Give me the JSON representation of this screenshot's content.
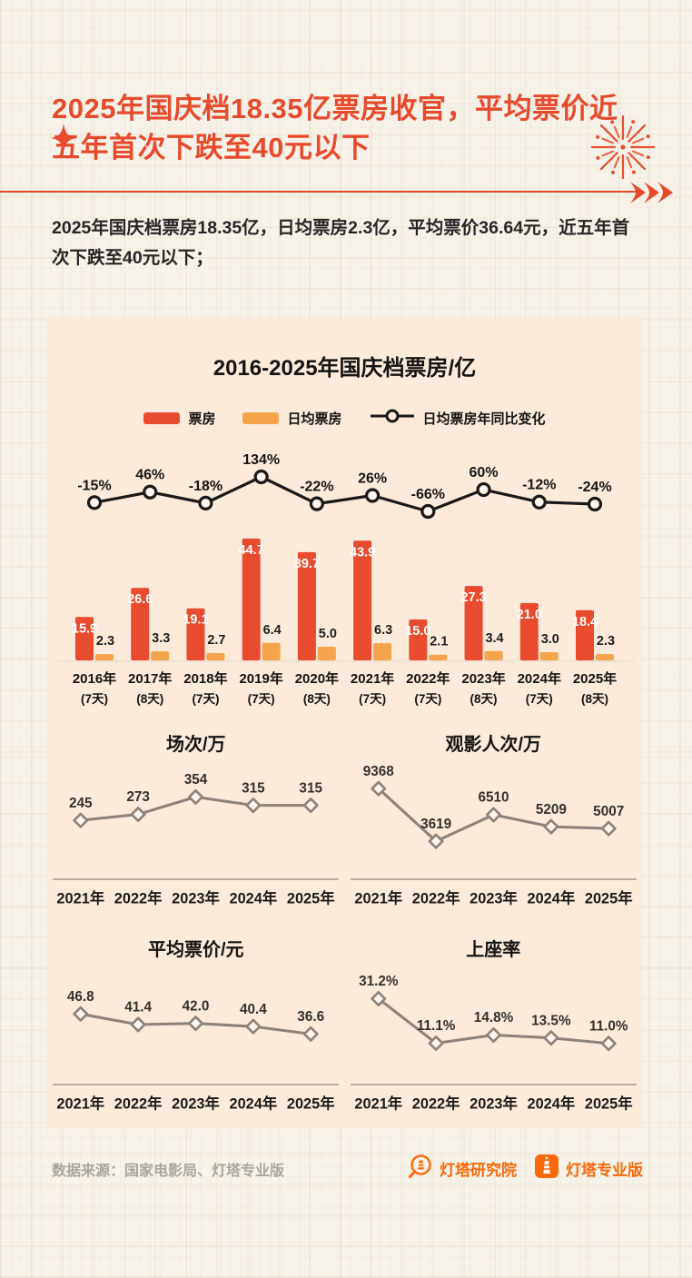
{
  "header": {
    "title": "2025年国庆档18.35亿票房收官，平均票价近五年首次下跌至40元以下",
    "intro": "2025年国庆档票房18.35亿，日均票房2.3亿，平均票价36.64元，近五年首次下跌至40元以下；"
  },
  "colors": {
    "accent": "#e84a2c",
    "bar_red": "#e94b2e",
    "bar_orange": "#f5a44c",
    "line_black": "#1a1a1a",
    "small_line": "#8d837b",
    "panel_bg": "#fcebdb",
    "page_bg": "#f8f3ea",
    "axis_gray": "#a79e92",
    "value_gray": "#33302c",
    "logo_orange": "#f9690a"
  },
  "chart_data": [
    {
      "type": "bar+line",
      "title": "2016-2025年国庆档票房/亿",
      "legend_position": "top",
      "categories": [
        "2016年",
        "2017年",
        "2018年",
        "2019年",
        "2020年",
        "2021年",
        "2022年",
        "2023年",
        "2024年",
        "2025年"
      ],
      "category_sub": [
        "(7天)",
        "(8天)",
        "(7天)",
        "(7天)",
        "(8天)",
        "(7天)",
        "(7天)",
        "(8天)",
        "(7天)",
        "(8天)"
      ],
      "ylim": [
        0,
        48
      ],
      "series": [
        {
          "name": "票房",
          "type": "bar",
          "values": [
            15.9,
            26.6,
            19.1,
            44.7,
            39.7,
            43.9,
            15.0,
            27.3,
            21.0,
            18.4
          ],
          "labels": [
            "15.9",
            "26.6",
            "19.1",
            "44.7",
            "39.7",
            "43.9",
            "15.0",
            "27.3",
            "21.0",
            "18.4"
          ]
        },
        {
          "name": "日均票房",
          "type": "bar",
          "values": [
            2.3,
            3.3,
            2.7,
            6.4,
            5.0,
            6.3,
            2.1,
            3.4,
            3.0,
            2.3
          ],
          "labels": [
            "2.3",
            "3.3",
            "2.7",
            "6.4",
            "5.0",
            "6.3",
            "2.1",
            "3.4",
            "3.0",
            "2.3"
          ]
        },
        {
          "name": "日均票房年同比变化",
          "type": "line",
          "values": [
            -15,
            46,
            -18,
            134,
            -22,
            26,
            -66,
            60,
            -12,
            -24
          ],
          "labels": [
            "-15%",
            "46%",
            "-18%",
            "134%",
            "-22%",
            "26%",
            "-66%",
            "60%",
            "-12%",
            "-24%"
          ]
        }
      ]
    },
    {
      "type": "line",
      "title": "场次/万",
      "categories": [
        "2021年",
        "2022年",
        "2023年",
        "2024年",
        "2025年"
      ],
      "values": [
        245,
        273,
        354,
        315,
        315
      ],
      "labels": [
        "245",
        "273",
        "354",
        "315",
        "315"
      ],
      "ylim": [
        100,
        420
      ]
    },
    {
      "type": "line",
      "title": "观影人次/万",
      "categories": [
        "2021年",
        "2022年",
        "2023年",
        "2024年",
        "2025年"
      ],
      "values": [
        9368,
        3619,
        6510,
        5209,
        5007
      ],
      "labels": [
        "9368",
        "3619",
        "6510",
        "5209",
        "5007"
      ],
      "ylim": [
        2500,
        10000
      ]
    },
    {
      "type": "line",
      "title": "平均票价/元",
      "categories": [
        "2021年",
        "2022年",
        "2023年",
        "2024年",
        "2025年"
      ],
      "values": [
        46.8,
        41.4,
        42.0,
        40.4,
        36.6
      ],
      "labels": [
        "46.8",
        "41.4",
        "42.0",
        "40.4",
        "36.6"
      ],
      "ylim": [
        25,
        60
      ]
    },
    {
      "type": "line",
      "title": "上座率",
      "categories": [
        "2021年",
        "2022年",
        "2023年",
        "2024年",
        "2025年"
      ],
      "values": [
        31.2,
        11.1,
        14.8,
        13.5,
        11.0
      ],
      "labels": [
        "31.2%",
        "11.1%",
        "14.8%",
        "13.5%",
        "11.0%"
      ],
      "ylim": [
        5,
        36
      ]
    }
  ],
  "footer": {
    "source": "数据来源：国家电影局、灯塔专业版",
    "logo1_label": "灯塔研究院",
    "logo2_label": "灯塔专业版"
  }
}
